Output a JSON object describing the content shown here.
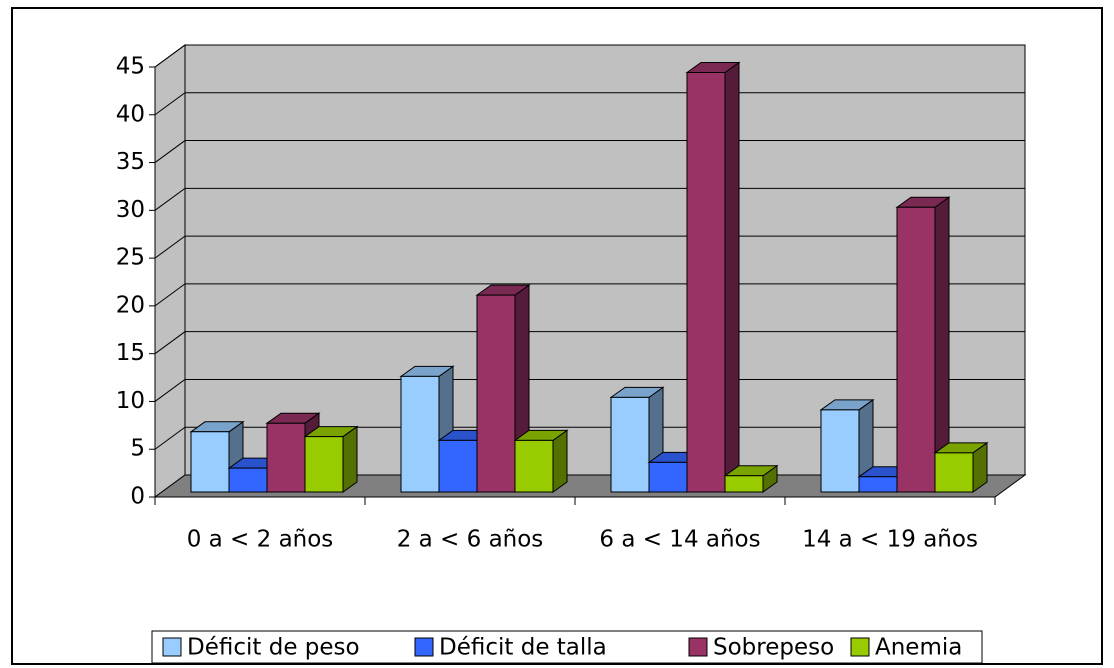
{
  "chart_data": {
    "type": "bar3d",
    "categories": [
      "0 a < 2 años",
      "2 a < 6 años",
      "6 a < 14 años",
      "14 a < 19 años"
    ],
    "series": [
      {
        "name": "Déficit de peso",
        "color": "#99ccff",
        "values": [
          6.3,
          12.1,
          9.9,
          8.6
        ]
      },
      {
        "name": "Déficit de talla",
        "color": "#3366ff",
        "values": [
          2.5,
          5.4,
          3.1,
          1.6
        ]
      },
      {
        "name": "Sobrepeso",
        "color": "#993366",
        "values": [
          7.2,
          20.6,
          43.9,
          29.8
        ]
      },
      {
        "name": "Anemia",
        "color": "#99cc00",
        "values": [
          5.8,
          5.4,
          1.7,
          4.1
        ]
      }
    ],
    "ylim": [
      0,
      45
    ],
    "yticks": [
      0,
      5,
      10,
      15,
      20,
      25,
      30,
      35,
      40,
      45
    ],
    "grid": true
  }
}
